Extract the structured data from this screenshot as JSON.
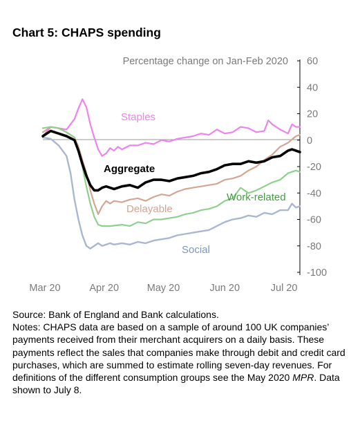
{
  "title": "Chart 5: CHAPS spending",
  "chart_data": {
    "type": "line",
    "subtitle": "Percentage change on Jan-Feb 2020",
    "y_axis_side": "right",
    "ylim": [
      -100,
      60
    ],
    "yticks": [
      60,
      40,
      20,
      0,
      -20,
      -40,
      -60,
      -80,
      -100
    ],
    "x_range_days": [
      0,
      130
    ],
    "xticks": [
      {
        "label": "Mar 20",
        "day": 0
      },
      {
        "label": "Apr 20",
        "day": 31
      },
      {
        "label": "May 20",
        "day": 61
      },
      {
        "label": "Jun 20",
        "day": 92
      },
      {
        "label": "Jul 20",
        "day": 122
      }
    ],
    "grid": false,
    "series": [
      {
        "name": "Staples",
        "color": "#ee82ee",
        "width": 2.2,
        "x": [
          0,
          4,
          8,
          12,
          16,
          18,
          20,
          22,
          24,
          26,
          28,
          30,
          32,
          34,
          36,
          38,
          40,
          44,
          48,
          52,
          56,
          60,
          64,
          68,
          72,
          76,
          80,
          84,
          88,
          92,
          96,
          100,
          104,
          108,
          112,
          114,
          116,
          120,
          124,
          126,
          128,
          130
        ],
        "y": [
          3,
          10,
          9,
          8,
          16,
          24,
          31,
          25,
          12,
          2,
          -7,
          -12,
          -10,
          -6,
          -8,
          -5,
          -7,
          -4,
          -4,
          -2,
          -3,
          0,
          -1,
          1,
          2,
          3,
          5,
          4,
          8,
          5,
          6,
          10,
          9,
          6,
          7,
          15,
          12,
          8,
          5,
          12,
          10,
          10
        ]
      },
      {
        "name": "Delayable",
        "color": "#d4a591",
        "width": 2.2,
        "x": [
          0,
          4,
          8,
          12,
          16,
          18,
          20,
          22,
          24,
          26,
          28,
          30,
          32,
          34,
          36,
          40,
          44,
          48,
          52,
          56,
          60,
          64,
          68,
          72,
          76,
          80,
          84,
          88,
          92,
          96,
          100,
          104,
          108,
          112,
          116,
          120,
          124,
          128,
          130
        ],
        "y": [
          6,
          10,
          9,
          6,
          2,
          -5,
          -15,
          -25,
          -38,
          -48,
          -56,
          -50,
          -46,
          -48,
          -46,
          -47,
          -45,
          -44,
          -46,
          -43,
          -41,
          -42,
          -39,
          -37,
          -36,
          -35,
          -34,
          -33,
          -30,
          -29,
          -27,
          -23,
          -20,
          -15,
          -11,
          -5,
          -2,
          3,
          4
        ]
      },
      {
        "name": "Work-related",
        "color": "#8fd08f",
        "width": 2.2,
        "x": [
          0,
          4,
          8,
          12,
          16,
          18,
          20,
          22,
          24,
          26,
          28,
          30,
          34,
          40,
          44,
          48,
          52,
          56,
          60,
          64,
          68,
          72,
          76,
          80,
          84,
          88,
          92,
          96,
          100,
          104,
          108,
          112,
          116,
          120,
          124,
          128,
          130
        ],
        "y": [
          9,
          10,
          9,
          6,
          2,
          -8,
          -20,
          -35,
          -48,
          -58,
          -64,
          -65,
          -65,
          -64,
          -65,
          -62,
          -63,
          -60,
          -60,
          -59,
          -58,
          -56,
          -55,
          -53,
          -52,
          -50,
          -46,
          -44,
          -36,
          -40,
          -38,
          -35,
          -32,
          -30,
          -25,
          -23,
          -24
        ]
      },
      {
        "name": "Social",
        "color": "#a9b7d3",
        "width": 2.4,
        "x": [
          0,
          4,
          8,
          12,
          14,
          16,
          18,
          20,
          22,
          24,
          26,
          28,
          30,
          34,
          36,
          40,
          44,
          48,
          52,
          56,
          60,
          64,
          68,
          72,
          76,
          80,
          84,
          88,
          92,
          96,
          100,
          104,
          108,
          112,
          116,
          120,
          124,
          126,
          128,
          130
        ],
        "y": [
          2,
          1,
          -4,
          -12,
          -25,
          -45,
          -60,
          -72,
          -80,
          -82,
          -80,
          -78,
          -80,
          -78,
          -79,
          -78,
          -79,
          -77,
          -78,
          -76,
          -75,
          -74,
          -72,
          -71,
          -70,
          -69,
          -68,
          -65,
          -62,
          -60,
          -59,
          -57,
          -58,
          -55,
          -56,
          -53,
          -53,
          -48,
          -51,
          -50
        ]
      },
      {
        "name": "Aggregate",
        "color": "#000000",
        "width": 3.6,
        "x": [
          0,
          4,
          8,
          12,
          16,
          18,
          20,
          22,
          24,
          26,
          28,
          30,
          32,
          36,
          40,
          44,
          48,
          52,
          56,
          60,
          64,
          68,
          72,
          76,
          80,
          84,
          88,
          92,
          96,
          100,
          104,
          108,
          112,
          116,
          120,
          122,
          124,
          126,
          128,
          130
        ],
        "y": [
          3,
          7,
          5,
          3,
          0,
          -8,
          -18,
          -27,
          -34,
          -38,
          -38,
          -36,
          -35,
          -37,
          -35,
          -34,
          -36,
          -32,
          -30,
          -30,
          -31,
          -29,
          -28,
          -27,
          -25,
          -24,
          -22,
          -19,
          -18,
          -18,
          -16,
          -17,
          -16,
          -13,
          -12,
          -10,
          -8,
          -7,
          -8,
          -9
        ]
      }
    ],
    "labels": [
      {
        "text": "Staples",
        "color": "#ee82ee"
      },
      {
        "text": "Aggregate",
        "color": "#000000",
        "bold": true
      },
      {
        "text": "Delayable",
        "color": "#d4a591"
      },
      {
        "text": "Work-related",
        "color": "#3e9e3e"
      },
      {
        "text": "Social",
        "color": "#7f95c1"
      }
    ]
  },
  "notes": {
    "source": "Source: Bank of England and Bank calculations.",
    "text_before_italic": "Notes: CHAPS data are based on a sample of around 100 UK companies’ payments received from their merchant acquirers on a daily basis. These payments reflect the sales that companies make through debit and credit card purchases, which are summed to estimate rolling seven-day revenues. For definitions of the different consumption groups see the May 2020 ",
    "italic": "MPR",
    "text_after_italic": ". Data shown to July 8."
  }
}
